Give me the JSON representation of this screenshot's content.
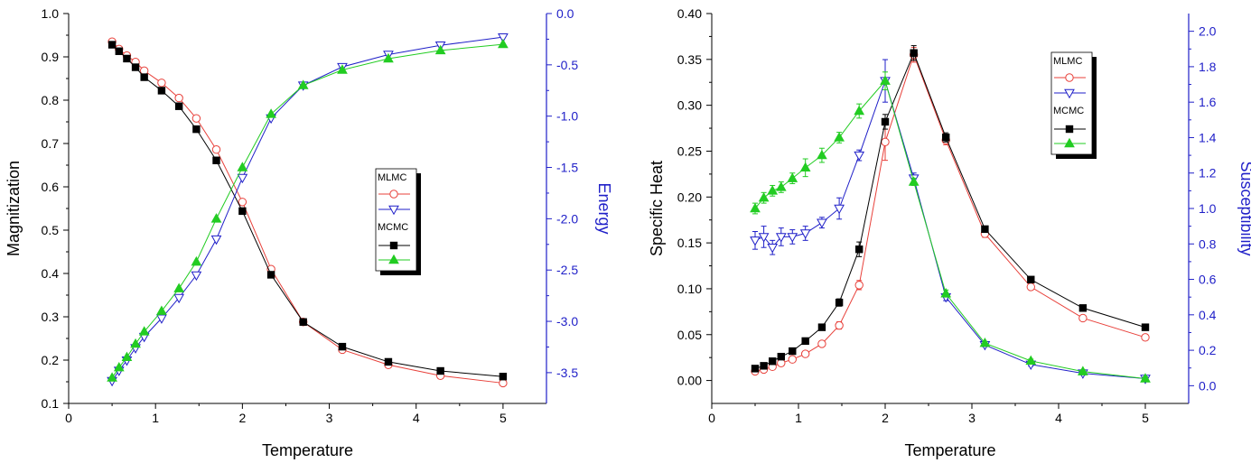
{
  "chart_data": [
    {
      "type": "line",
      "xlabel": "Temperature",
      "ylabel_left": "Magnitization",
      "ylabel_right": "Energy",
      "xlim": [
        0,
        5.5
      ],
      "ylim_left": [
        0.1,
        1.0
      ],
      "ylim_right": [
        -3.8,
        0.0
      ],
      "xticks": [
        0,
        1,
        2,
        3,
        4,
        5
      ],
      "yticks_left": [
        0.1,
        0.2,
        0.3,
        0.4,
        0.5,
        0.6,
        0.7,
        0.8,
        0.9,
        1.0
      ],
      "yticks_right": [
        -3.5,
        -3.0,
        -2.5,
        -2.0,
        -1.5,
        -1.0,
        -0.5,
        0.0
      ],
      "grid": false,
      "legend": {
        "position": "center-right",
        "groups": [
          {
            "label": "MLMC",
            "entries": [
              "mag-circle",
              "energy-triangle-down"
            ]
          },
          {
            "label": "MCMC",
            "entries": [
              "mag-square",
              "energy-triangle-up"
            ]
          }
        ]
      },
      "x": [
        0.5,
        0.58,
        0.67,
        0.77,
        0.87,
        1.07,
        1.27,
        1.47,
        1.7,
        2.0,
        2.33,
        2.7,
        3.15,
        3.68,
        4.28,
        5.0
      ],
      "series": [
        {
          "axis": "left",
          "marker": "circle-open",
          "color": "#e8403a",
          "values": [
            0.935,
            0.918,
            0.903,
            0.888,
            0.868,
            0.84,
            0.805,
            0.758,
            0.686,
            0.565,
            0.41,
            0.288,
            0.224,
            0.189,
            0.164,
            0.147
          ]
        },
        {
          "axis": "left",
          "marker": "square-filled",
          "color": "#000000",
          "values": [
            0.928,
            0.913,
            0.896,
            0.876,
            0.853,
            0.822,
            0.786,
            0.733,
            0.661,
            0.544,
            0.397,
            0.288,
            0.231,
            0.196,
            0.175,
            0.162
          ]
        },
        {
          "axis": "right",
          "marker": "triangle-down-open",
          "color": "#1f1fc8",
          "values": [
            -3.58,
            -3.48,
            -3.38,
            -3.26,
            -3.15,
            -2.97,
            -2.77,
            -2.55,
            -2.2,
            -1.6,
            -1.02,
            -0.7,
            -0.52,
            -0.4,
            -0.31,
            -0.23
          ]
        },
        {
          "axis": "right",
          "marker": "triangle-up-filled",
          "color": "#22cc22",
          "values": [
            -3.55,
            -3.45,
            -3.35,
            -3.22,
            -3.1,
            -2.9,
            -2.68,
            -2.42,
            -2.0,
            -1.5,
            -0.98,
            -0.7,
            -0.55,
            -0.44,
            -0.36,
            -0.3
          ]
        }
      ]
    },
    {
      "type": "line",
      "xlabel": "Temperature",
      "ylabel_left": "Specific Heat",
      "ylabel_right": "Susceptibility",
      "xlim": [
        0,
        5.5
      ],
      "ylim_left": [
        -0.025,
        0.4
      ],
      "ylim_right": [
        -0.1,
        2.1
      ],
      "xticks": [
        0,
        1,
        2,
        3,
        4,
        5
      ],
      "yticks_left": [
        0.0,
        0.05,
        0.1,
        0.15,
        0.2,
        0.25,
        0.3,
        0.35,
        0.4
      ],
      "yticks_right": [
        0.0,
        0.2,
        0.4,
        0.6,
        0.8,
        1.0,
        1.2,
        1.4,
        1.6,
        1.8,
        2.0
      ],
      "grid": false,
      "legend": {
        "position": "top-right",
        "groups": [
          {
            "label": "MLMC",
            "entries": [
              "cv-circle",
              "chi-triangle-down"
            ]
          },
          {
            "label": "MCMC",
            "entries": [
              "cv-square",
              "chi-triangle-up"
            ]
          }
        ]
      },
      "x": [
        0.5,
        0.6,
        0.7,
        0.8,
        0.93,
        1.08,
        1.27,
        1.47,
        1.7,
        2.0,
        2.33,
        2.7,
        3.15,
        3.68,
        4.28,
        5.0
      ],
      "series": [
        {
          "axis": "left",
          "marker": "circle-open",
          "color": "#e8403a",
          "values": [
            0.01,
            0.012,
            0.015,
            0.019,
            0.023,
            0.029,
            0.04,
            0.06,
            0.104,
            0.26,
            0.355,
            0.262,
            0.16,
            0.102,
            0.068,
            0.047
          ],
          "errors": [
            0.002,
            0.002,
            0.002,
            0.002,
            0.002,
            0.003,
            0.003,
            0.004,
            0.005,
            0.02,
            0.008,
            0.005,
            0.004,
            0.003,
            0.003,
            0.002
          ]
        },
        {
          "axis": "left",
          "marker": "square-filled",
          "color": "#000000",
          "values": [
            0.013,
            0.016,
            0.021,
            0.026,
            0.032,
            0.043,
            0.058,
            0.085,
            0.143,
            0.282,
            0.357,
            0.265,
            0.165,
            0.11,
            0.079,
            0.058
          ],
          "errors": [
            0.002,
            0.002,
            0.002,
            0.002,
            0.002,
            0.003,
            0.003,
            0.004,
            0.008,
            0.008,
            0.008,
            0.005,
            0.003,
            0.002,
            0.002,
            0.002
          ]
        },
        {
          "axis": "right",
          "marker": "triangle-down-open",
          "color": "#1f1fc8",
          "values": [
            0.82,
            0.84,
            0.78,
            0.84,
            0.84,
            0.86,
            0.92,
            1.0,
            1.3,
            1.72,
            1.17,
            0.5,
            0.23,
            0.12,
            0.07,
            0.04
          ],
          "errors": [
            0.05,
            0.06,
            0.04,
            0.05,
            0.04,
            0.04,
            0.03,
            0.06,
            0.03,
            0.12,
            0.03,
            0.02,
            0.01,
            0.01,
            0.01,
            0.01
          ]
        },
        {
          "axis": "right",
          "marker": "triangle-up-filled",
          "color": "#22cc22",
          "values": [
            1.0,
            1.06,
            1.1,
            1.12,
            1.17,
            1.23,
            1.3,
            1.4,
            1.55,
            1.72,
            1.15,
            0.52,
            0.24,
            0.14,
            0.08,
            0.04
          ],
          "errors": [
            0.03,
            0.03,
            0.03,
            0.03,
            0.03,
            0.05,
            0.04,
            0.03,
            0.04,
            0.05,
            0.02,
            0.02,
            0.01,
            0.01,
            0.01,
            0.01
          ]
        }
      ]
    }
  ]
}
